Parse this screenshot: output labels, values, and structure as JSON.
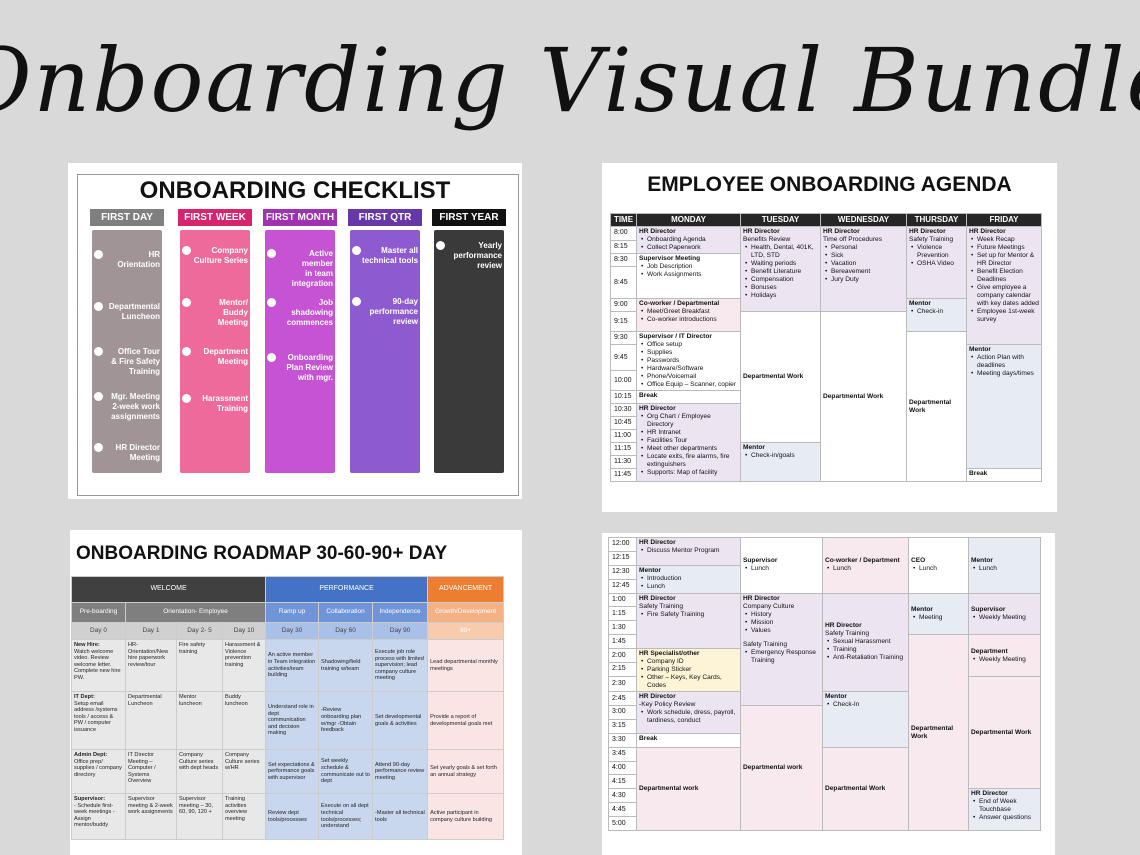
{
  "banner": {
    "title": "Onboarding Visual Bundle"
  },
  "checklist": {
    "title": "ONBOARDING CHECKLIST",
    "columns": [
      {
        "label": "FIRST DAY",
        "head": "#7f7f7f",
        "bar": "#a09497",
        "items": [
          "HR Orientation",
          "Departmental\nLuncheon",
          "Office Tour\n& Fire Safety\nTraining",
          "Mgr. Meeting\n2-week work\nassignments",
          "HR Director\nMeeting"
        ]
      },
      {
        "label": "FIRST WEEK",
        "head": "#d6246e",
        "bar": "#ee6a9b",
        "items": [
          "Company\nCulture Series",
          "Mentor/\nBuddy\nMeeting",
          "Department\nMeeting",
          "Harassment\nTraining"
        ]
      },
      {
        "label": "FIRST MONTH",
        "head": "#9e32b0",
        "bar": "#c553d4",
        "items": [
          "Active\nmember\nin team\nintegration",
          "Job\nshadowing\ncommences",
          "Onboarding\nPlan Review\nwith mgr."
        ]
      },
      {
        "label": "FIRST QTR",
        "head": "#6537a8",
        "bar": "#8e5ad0",
        "items": [
          "Master all\ntechnical tools",
          "90-day\nperformance\nreview"
        ]
      },
      {
        "label": "FIRST YEAR",
        "head": "#111111",
        "bar": "#3a3a3a",
        "items": [
          "Yearly\nperformance\nreview"
        ]
      }
    ]
  },
  "agenda": {
    "title": "EMPLOYEE ONBOARDING AGENDA",
    "headers": [
      "TIME",
      "MONDAY",
      "TUESDAY",
      "WEDNESDAY",
      "THURSDAY",
      "FRIDAY"
    ],
    "times": [
      "8:00",
      "8:15",
      "8:30",
      "8:45",
      "9:00",
      "9:15",
      "9:30",
      "9:45",
      "10:00",
      "10:15",
      "10:30",
      "10:45",
      "11:00",
      "11:15",
      "11:30",
      "11:45"
    ],
    "mon": {
      "b1": {
        "t": "HR Director",
        "l": [
          "Onboarding Agenda",
          "Collect Paperwork"
        ]
      },
      "b2": {
        "t": "Supervisor Meeting",
        "l": [
          "Job Description",
          "Work Assignments"
        ]
      },
      "b3": {
        "t": "Co-worker / Departmental",
        "l": [
          "Meet/Greet Breakfast",
          "Co-worker introductions"
        ]
      },
      "b4": {
        "t": "Supervisor / IT Director",
        "l": [
          "Office setup",
          "Supplies",
          "Passwords",
          "Hardware/Software",
          "Phone/Voicemail",
          "Office Equip – Scanner, copier"
        ]
      },
      "b5": {
        "t": "Break"
      },
      "b6": {
        "t": "HR Director",
        "l": [
          "Org Chart / Employee Directory",
          "HR Intranet",
          "Facilities Tour",
          "Meet other departments",
          "Locate exits, fire alarms, fire extinguishers",
          "Supports: Map of facility"
        ]
      }
    },
    "tue": {
      "b1": {
        "t": "HR Director",
        "s": "Benefits Review",
        "l": [
          "Health, Dental, 401K, LTD, STD",
          "Waiting periods",
          "Benefit Literature",
          "Compensation",
          "Bonuses",
          "Holidays"
        ]
      },
      "b2": {
        "t": "Departmental Work"
      },
      "b3": {
        "t": "Mentor",
        "l": [
          "Check-in/goals"
        ]
      }
    },
    "wed": {
      "b1": {
        "t": "HR Director",
        "s": "Time off Procedures",
        "l": [
          "Personal",
          "Sick",
          "Vacation",
          "Bereavement",
          "Jury Duty"
        ]
      },
      "b2": {
        "t": "Departmental Work"
      }
    },
    "thu": {
      "b1": {
        "t": "HR Director",
        "s": "Safety Training",
        "l": [
          "Violence Prevention",
          "OSHA Video"
        ]
      },
      "b2": {
        "t": "Mentor",
        "l": [
          "Check-in"
        ]
      },
      "b3": {
        "t": "Departmental\nWork"
      }
    },
    "fri": {
      "b1": {
        "t": "HR Director",
        "l": [
          "Week Recap",
          "Future Meetings",
          "Set up for Mentor & HR Director",
          "Benefit Election Deadlines",
          "Give employee a company calendar with key dates added",
          "Employee 1st-week survey"
        ]
      },
      "b2": {
        "t": "Mentor",
        "l": [
          "Action Plan with deadlines",
          "Meeting days/times"
        ]
      },
      "b3": {
        "t": "Break"
      }
    }
  },
  "roadmap": {
    "title": "ONBOARDING ROADMAP 30-60-90+ DAY",
    "row1": [
      "WELCOME",
      "PERFORMANCE",
      "ADVANCEMENT"
    ],
    "row2": [
      "Pre-boarding",
      "Orientation- Employee",
      "Ramp up",
      "Collaboration",
      "Independence",
      "Growth/Development"
    ],
    "row3": [
      "Day 0",
      "Day 1",
      "Day 2- 5",
      "Day 10",
      "Day 30",
      "Day 60",
      "Day 90",
      "90+"
    ],
    "rows": [
      {
        "c0h": "New Hire:",
        "c0": "Watch welcome video. Review welcome letter. Complete new hire PW.",
        "c": [
          "HR-Orientation/New hire paperwork review/tour",
          "Fire safety training",
          "Harassment & Violence prevention training",
          "An active member in Team integration activities/team building",
          "Shadowing/field training w/team",
          "Execute job role process with limited supervision; lead company culture meeting",
          "Lead departmental monthly meetings"
        ]
      },
      {
        "c0h": "IT Dept:",
        "c0": "Setup email address /systems tools / access & PW / computer issuance",
        "c": [
          "Departmental Luncheon",
          "Mentor luncheon",
          "Buddy luncheon",
          "Understand role in dept communication and decision making",
          "-Review onboarding plan w/mgr -Obtain feedback",
          "Set developmental goals & activities",
          "Provide a report of developmental goals met"
        ]
      },
      {
        "c0h": "Admin Dept:",
        "c0": "Office prep/ supplies / company directory",
        "c": [
          "IT Director Meeting – Computer / Systems Overview",
          "Company Culture series with dept heads",
          "Company Culture series w/HR",
          "Set expectations & performance goals with supervisor",
          "Set weekly schedule & communicate out to dept",
          "Attend 90-day performance review meeting",
          "Set yearly goals & set forth an annual strategy"
        ]
      },
      {
        "c0h": "Supervisor:",
        "c0": "- Schedule first-week meetings -Assign mentor/buddy",
        "c": [
          "Supervisor meeting & 2-week work assignments",
          "Supervisor meeting – 30, 60, 90, 120 +",
          "Training activities overview meeting",
          "Review dept tools/processes",
          "Execute on all dept technical tools/processes; understand",
          "-Master all technical tools",
          "Active participant in company culture building"
        ]
      }
    ]
  },
  "agenda2": {
    "times": [
      "12:00",
      "12:15",
      "12:30",
      "12:45",
      "1:00",
      "1:15",
      "1:30",
      "1:45",
      "2:00",
      "2:15",
      "2:30",
      "2:45",
      "3:00",
      "3:15",
      "3:30",
      "3:45",
      "4:00",
      "4:15",
      "4:30",
      "4:45",
      "5:00"
    ],
    "mon": {
      "b1": {
        "t": "HR Director",
        "l": [
          "Discuss Mentor Program"
        ]
      },
      "b2": {
        "t": "Mentor",
        "l": [
          "Introduction",
          "Lunch"
        ]
      },
      "b3": {
        "t": "HR Director",
        "s": "Safety Training",
        "l": [
          "Fire Safety Training"
        ]
      },
      "b4": {
        "t": "HR Specialist/other",
        "l": [
          "Company ID",
          "Parking Sticker",
          "Other – Keys, Key Cards, Codes"
        ]
      },
      "b5": {
        "t": "HR Director",
        "s": "-Key Policy Review",
        "l": [
          "Work schedule, dress, payroll, tardiness, conduct"
        ]
      },
      "b6": {
        "t": "Break"
      },
      "b7": {
        "t": "Departmental work"
      }
    },
    "tue": {
      "b1": {
        "t": "Supervisor",
        "l": [
          "Lunch"
        ]
      },
      "b2": {
        "t": "HR Director",
        "s": "Company Culture",
        "l": [
          "History",
          "Mission",
          "Values"
        ],
        "s2": "Safety Training",
        "l2": [
          "Emergency Response Training"
        ]
      },
      "b3": {
        "t": "Departmental work"
      }
    },
    "wed": {
      "b1": {
        "t": "Co-worker / Department",
        "l": [
          "Lunch"
        ]
      },
      "b2": {
        "t": "HR Director",
        "s": "Safety Training",
        "l": [
          "Sexual Harassment",
          "Training",
          "Anti-Retaliation Training"
        ]
      },
      "b3": {
        "t": "Mentor",
        "l": [
          "Check-In"
        ]
      },
      "b4": {
        "t": "Departmental Work"
      }
    },
    "thu": {
      "b1": {
        "t": "CEO",
        "l": [
          "Lunch"
        ]
      },
      "b2": {
        "t": "Mentor",
        "l": [
          "Meeting"
        ]
      },
      "b3": {
        "t": "Departmental\nWork"
      }
    },
    "fri": {
      "b1": {
        "t": "Mentor",
        "l": [
          "Lunch"
        ]
      },
      "b2": {
        "t": "Supervisor",
        "l": [
          "Weekly Meeting"
        ]
      },
      "b3": {
        "t": "Department",
        "l": [
          "Weekly Meeting"
        ]
      },
      "b4": {
        "t": "Departmental Work"
      },
      "b5": {
        "t": "HR Director",
        "l": [
          "End of Week Touchbase",
          "Answer questions"
        ]
      }
    }
  }
}
